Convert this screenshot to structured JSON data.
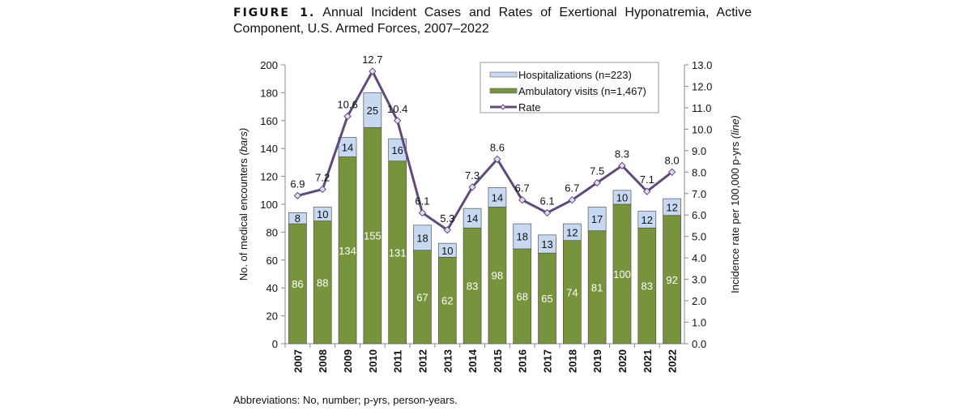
{
  "figure": {
    "label": "FIGURE 1.",
    "title": "Annual Incident Cases and Rates of Exertional Hyponatremia, Active Component, U.S. Armed Forces, 2007–2022"
  },
  "footnote": "Abbreviations: No, number; p-yrs, person-years.",
  "chart_data": {
    "type": "bar",
    "stacked": true,
    "categories": [
      "2007",
      "2008",
      "2009",
      "2010",
      "2011",
      "2012",
      "2013",
      "2014",
      "2015",
      "2016",
      "2017",
      "2018",
      "2019",
      "2020",
      "2021",
      "2022"
    ],
    "series": [
      {
        "name": "Ambulatory visits (n=1,467)",
        "axis": "left",
        "color": "#77933c",
        "values": [
          86,
          88,
          134,
          155,
          131,
          67,
          62,
          83,
          98,
          68,
          65,
          74,
          81,
          100,
          83,
          92
        ]
      },
      {
        "name": "Hospitalizations (n=223)",
        "axis": "left",
        "color": "#c6d9f1",
        "values": [
          8,
          10,
          14,
          25,
          16,
          18,
          10,
          14,
          14,
          18,
          13,
          12,
          17,
          10,
          12,
          12
        ]
      },
      {
        "name": "Rate",
        "axis": "right",
        "type": "line",
        "color": "#604a7b",
        "values": [
          6.9,
          7.2,
          10.6,
          12.7,
          10.4,
          6.1,
          5.3,
          7.3,
          8.6,
          6.7,
          6.1,
          6.7,
          7.5,
          8.3,
          7.1,
          8.0
        ]
      }
    ],
    "ylabel": "No. of medical encounters",
    "ylabel_suffix": "(bars)",
    "y2label": "Incidence rate per 100,000 p-yrs",
    "y2label_suffix": "(line)",
    "ylim": [
      0,
      200
    ],
    "yticks": [
      "0",
      "20",
      "40",
      "60",
      "80",
      "100",
      "120",
      "140",
      "160",
      "180",
      "200"
    ],
    "y2lim": [
      0,
      13
    ],
    "y2ticks": [
      "0.0",
      "1.0",
      "2.0",
      "3.0",
      "4.0",
      "5.0",
      "6.0",
      "7.0",
      "8.0",
      "9.0",
      "10.0",
      "11.0",
      "12.0",
      "13.0"
    ],
    "legend": "top-right",
    "grid": false
  }
}
